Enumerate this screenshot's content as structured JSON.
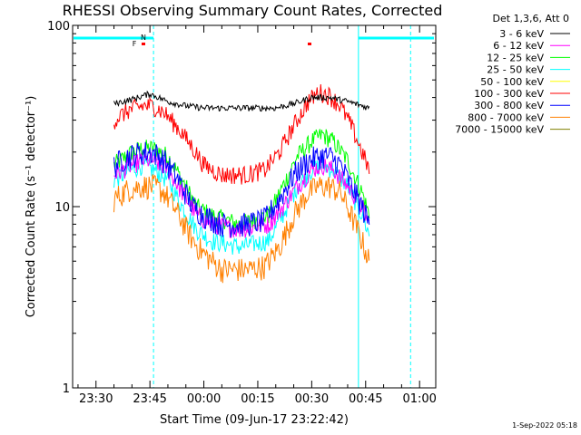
{
  "chart_data": {
    "type": "line",
    "title": "RHESSI Observing Summary Count Rates, Corrected",
    "xlabel": "Start Time (09-Jun-17 23:22:42)",
    "ylabel": "Corrected Count Rate (s⁻¹ detector⁻¹)",
    "yscale": "log",
    "ylim": [
      1,
      100
    ],
    "xlim_minutes": [
      -36.5,
      64.5
    ],
    "x_ticks": [
      {
        "min": -30,
        "label": "23:30"
      },
      {
        "min": -15,
        "label": "23:45"
      },
      {
        "min": 0,
        "label": "00:00"
      },
      {
        "min": 15,
        "label": "00:15"
      },
      {
        "min": 30,
        "label": "00:30"
      },
      {
        "min": 45,
        "label": "00:45"
      },
      {
        "min": 60,
        "label": "01:00"
      }
    ],
    "y_ticks": [
      {
        "value": 1,
        "label": "1"
      },
      {
        "value": 10,
        "label": "10"
      },
      {
        "value": 100,
        "label": "100"
      }
    ],
    "legend_header": "Det 1,3,6, Att 0",
    "legend_position": "top-right",
    "series": [
      {
        "name": "3 - 6 keV",
        "color": "#000000",
        "points": [
          [
            -25,
            37
          ],
          [
            -20,
            39
          ],
          [
            -15,
            42
          ],
          [
            -10,
            38
          ],
          [
            -5,
            36
          ],
          [
            0,
            35
          ],
          [
            10,
            35
          ],
          [
            20,
            35
          ],
          [
            25,
            37
          ],
          [
            30,
            40
          ],
          [
            35,
            40
          ],
          [
            40,
            38
          ],
          [
            44,
            36
          ],
          [
            46,
            35
          ]
        ]
      },
      {
        "name": "6 - 12 keV",
        "color": "#ff00ff",
        "points": [
          [
            -25,
            15
          ],
          [
            -20,
            17
          ],
          [
            -17,
            18
          ],
          [
            -14,
            18
          ],
          [
            -10,
            16
          ],
          [
            -6,
            12
          ],
          [
            -2,
            9
          ],
          [
            2,
            8
          ],
          [
            10,
            7.5
          ],
          [
            18,
            8
          ],
          [
            22,
            10
          ],
          [
            26,
            13
          ],
          [
            30,
            16
          ],
          [
            33,
            17
          ],
          [
            36,
            16
          ],
          [
            40,
            13
          ],
          [
            44,
            10
          ],
          [
            46,
            8
          ]
        ]
      },
      {
        "name": "12 - 25 keV",
        "color": "#00ff00",
        "points": [
          [
            -25,
            17
          ],
          [
            -20,
            20
          ],
          [
            -17,
            21
          ],
          [
            -14,
            21
          ],
          [
            -10,
            19
          ],
          [
            -6,
            14
          ],
          [
            -2,
            10
          ],
          [
            2,
            9
          ],
          [
            10,
            8
          ],
          [
            18,
            9
          ],
          [
            22,
            13
          ],
          [
            26,
            19
          ],
          [
            30,
            23
          ],
          [
            33,
            25
          ],
          [
            36,
            23
          ],
          [
            40,
            18
          ],
          [
            44,
            12
          ],
          [
            46,
            9
          ]
        ]
      },
      {
        "name": "25 - 50 keV",
        "color": "#00ffff",
        "points": [
          [
            -25,
            14
          ],
          [
            -20,
            16
          ],
          [
            -17,
            17
          ],
          [
            -14,
            16
          ],
          [
            -10,
            14
          ],
          [
            -6,
            10
          ],
          [
            -2,
            7.5
          ],
          [
            2,
            6.5
          ],
          [
            10,
            6
          ],
          [
            18,
            6.5
          ],
          [
            22,
            9
          ],
          [
            26,
            13
          ],
          [
            30,
            16
          ],
          [
            33,
            17
          ],
          [
            36,
            16
          ],
          [
            40,
            13
          ],
          [
            44,
            9
          ],
          [
            46,
            7
          ]
        ]
      },
      {
        "name": "50 - 100 keV",
        "color": "#ffff00",
        "points": []
      },
      {
        "name": "100 - 300 keV",
        "color": "#ff0000",
        "points": [
          [
            -25,
            30
          ],
          [
            -21,
            34
          ],
          [
            -17,
            36
          ],
          [
            -14,
            36
          ],
          [
            -11,
            33
          ],
          [
            -7,
            27
          ],
          [
            -3,
            21
          ],
          [
            0,
            17
          ],
          [
            5,
            15
          ],
          [
            12,
            15
          ],
          [
            17,
            16
          ],
          [
            21,
            20
          ],
          [
            25,
            28
          ],
          [
            29,
            38
          ],
          [
            32,
            43
          ],
          [
            35,
            41
          ],
          [
            38,
            36
          ],
          [
            41,
            28
          ],
          [
            44,
            20
          ],
          [
            46,
            16
          ]
        ]
      },
      {
        "name": "300 - 800 keV",
        "color": "#0000ff",
        "points": [
          [
            -25,
            17
          ],
          [
            -21,
            19
          ],
          [
            -17,
            20
          ],
          [
            -14,
            20
          ],
          [
            -11,
            18
          ],
          [
            -7,
            14
          ],
          [
            -3,
            10
          ],
          [
            0,
            9
          ],
          [
            5,
            8
          ],
          [
            12,
            8
          ],
          [
            17,
            8.5
          ],
          [
            21,
            11
          ],
          [
            25,
            15
          ],
          [
            29,
            18
          ],
          [
            32,
            19
          ],
          [
            35,
            19
          ],
          [
            38,
            17
          ],
          [
            41,
            13
          ],
          [
            44,
            10
          ],
          [
            46,
            8
          ]
        ]
      },
      {
        "name": "800 - 7000 keV",
        "color": "#ff8000",
        "points": [
          [
            -25,
            11
          ],
          [
            -21,
            12.5
          ],
          [
            -17,
            13
          ],
          [
            -14,
            13
          ],
          [
            -11,
            12
          ],
          [
            -7,
            9
          ],
          [
            -3,
            6.5
          ],
          [
            0,
            5.5
          ],
          [
            5,
            4.5
          ],
          [
            12,
            4.5
          ],
          [
            17,
            4.7
          ],
          [
            21,
            6
          ],
          [
            25,
            9
          ],
          [
            29,
            12
          ],
          [
            32,
            13
          ],
          [
            35,
            13
          ],
          [
            38,
            12
          ],
          [
            41,
            9
          ],
          [
            44,
            6.5
          ],
          [
            46,
            5
          ]
        ]
      },
      {
        "name": "7000 - 15000 keV",
        "color": "#808000",
        "points": []
      }
    ],
    "annotations": [
      {
        "text": "N",
        "color": "#00ffff"
      },
      {
        "text": "F",
        "color": "#ff0000"
      }
    ],
    "footer_date": "1-Sep-2022 05:18"
  }
}
